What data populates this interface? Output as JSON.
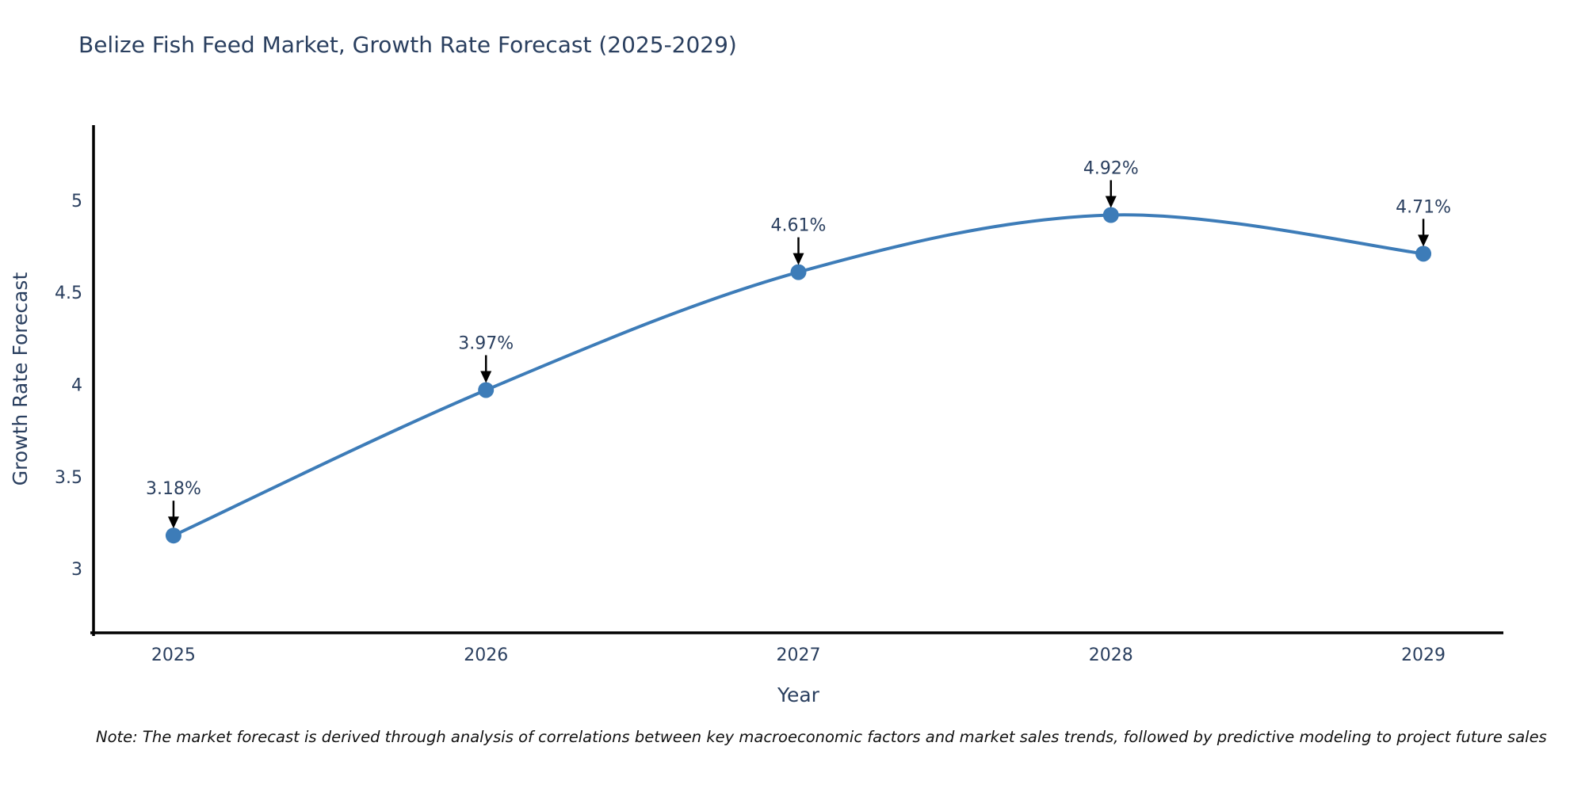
{
  "page": {
    "title": "Belize Fish Feed Market, Growth Rate Forecast (2025-2029)",
    "note": "Note: The market forecast is derived through analysis of correlations between key macroeconomic factors and market sales trends, followed by predictive modeling to project future sales"
  },
  "chart_data": {
    "type": "line",
    "title": "Belize Fish Feed Market, Growth Rate Forecast (2025-2029)",
    "xlabel": "Year",
    "ylabel": "Growth Rate Forecast",
    "x": [
      2025,
      2026,
      2027,
      2028,
      2029
    ],
    "series": [
      {
        "name": "Growth Rate Forecast",
        "values": [
          3.18,
          3.97,
          4.61,
          4.92,
          4.71
        ],
        "labels": [
          "3.18%",
          "3.97%",
          "4.61%",
          "4.92%",
          "4.71%"
        ]
      }
    ],
    "xticks": [
      "2025",
      "2026",
      "2027",
      "2028",
      "2029"
    ],
    "yticks": [
      "3",
      "3.5",
      "4",
      "4.5",
      "5"
    ],
    "xlim": [
      2024.744,
      2029.256
    ],
    "ylim": [
      2.652,
      5.408
    ],
    "line_shape": "spline",
    "grid": false,
    "legend_position": "none",
    "annotation_style": "value-label-with-down-arrow",
    "colors": {
      "line": "#3d7cb8",
      "marker": "#3d7cb8",
      "arrow": "#000000",
      "text": "#2a3f5f",
      "axis": "#000000",
      "note": "#111111",
      "background": "#ffffff"
    }
  }
}
